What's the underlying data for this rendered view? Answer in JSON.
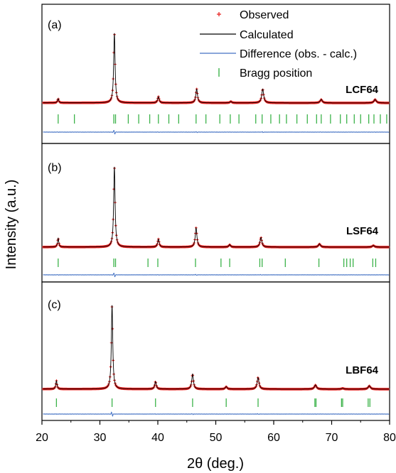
{
  "chart_data": {
    "type": "line",
    "title": "",
    "xlabel": "2θ (deg.)",
    "ylabel": "Intensity (a.u.)",
    "xlim": [
      20,
      80
    ],
    "xticks": [
      20,
      30,
      40,
      50,
      60,
      70,
      80
    ],
    "legend": {
      "placement": "top-right",
      "entries": [
        {
          "label": "Observed",
          "marker": "red-plus",
          "color": "#e8201f"
        },
        {
          "label": "Calculated",
          "marker": "black-line",
          "color": "#000000"
        },
        {
          "label": "Difference (obs. - calc.)",
          "marker": "blue-line",
          "color": "#4472c4"
        },
        {
          "label": "Bragg position",
          "marker": "green-tick",
          "color": "#3cb34a"
        }
      ]
    },
    "colors": {
      "observed": "#e8201f",
      "calculated": "#000000",
      "difference": "#4472c4",
      "bragg": "#3cb34a"
    },
    "panels": [
      {
        "tag": "(a)",
        "sample": "LCF64",
        "slope": 0.012,
        "peaks": [
          {
            "x": 22.8,
            "h": 0.06
          },
          {
            "x": 32.5,
            "h": 1.0
          },
          {
            "x": 40.1,
            "h": 0.09
          },
          {
            "x": 46.7,
            "h": 0.2
          },
          {
            "x": 52.6,
            "h": 0.02
          },
          {
            "x": 58.1,
            "h": 0.2
          },
          {
            "x": 68.2,
            "h": 0.05
          },
          {
            "x": 77.5,
            "h": 0.05
          }
        ],
        "bragg": [
          22.8,
          25.6,
          32.4,
          32.7,
          34.9,
          36.7,
          38.6,
          40.1,
          41.9,
          43.6,
          46.6,
          48.3,
          50.7,
          52.5,
          54.0,
          56.9,
          58.0,
          59.5,
          61.0,
          62.2,
          64.0,
          65.8,
          67.4,
          68.2,
          69.8,
          71.5,
          72.6,
          73.9,
          75.0,
          76.4,
          77.3,
          78.4,
          79.5
        ]
      },
      {
        "tag": "(b)",
        "sample": "LSF64",
        "slope": 0.008,
        "peaks": [
          {
            "x": 22.8,
            "h": 0.11
          },
          {
            "x": 32.5,
            "h": 1.0
          },
          {
            "x": 40.1,
            "h": 0.1
          },
          {
            "x": 46.6,
            "h": 0.24
          },
          {
            "x": 52.4,
            "h": 0.03
          },
          {
            "x": 57.8,
            "h": 0.12
          },
          {
            "x": 67.9,
            "h": 0.04
          },
          {
            "x": 77.2,
            "h": 0.02
          }
        ],
        "bragg": [
          22.8,
          32.4,
          32.7,
          38.3,
          40.0,
          46.5,
          50.9,
          52.4,
          57.6,
          58.0,
          62.0,
          67.8,
          72.1,
          72.6,
          73.2,
          73.7,
          77.1,
          77.6
        ]
      },
      {
        "tag": "(c)",
        "sample": "LBF64",
        "slope": 0.01,
        "peaks": [
          {
            "x": 22.5,
            "h": 0.1
          },
          {
            "x": 32.1,
            "h": 1.0
          },
          {
            "x": 39.6,
            "h": 0.09
          },
          {
            "x": 46.0,
            "h": 0.18
          },
          {
            "x": 51.8,
            "h": 0.03
          },
          {
            "x": 57.3,
            "h": 0.14
          },
          {
            "x": 67.2,
            "h": 0.05
          },
          {
            "x": 71.9,
            "h": 0.01
          },
          {
            "x": 76.5,
            "h": 0.04
          }
        ],
        "bragg": [
          22.5,
          32.1,
          39.6,
          46.0,
          51.8,
          57.3,
          67.1,
          67.3,
          71.7,
          71.9,
          76.3,
          76.6
        ]
      }
    ]
  }
}
